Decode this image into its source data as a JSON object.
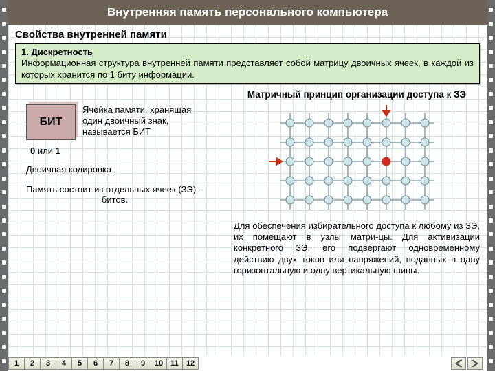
{
  "header": {
    "title": "Внутренняя память персонального компьютера"
  },
  "subhead": "Свойства внутренней памяти",
  "green_box": {
    "title": "1. Дискретность",
    "body": "Информационная структура внутренней памяти представляет собой матрицу двоичных ячеек, в каждой из которых хранится по 1 биту информации."
  },
  "bit": {
    "label": "БИТ",
    "desc": "Ячейка памяти, хранящая один двоичный знак, называется БИТ",
    "zero_one_prefix": "0",
    "zero_one_mid": " или ",
    "zero_one_suffix": "1",
    "binary": "Двоичная кодировка",
    "note": "Память состоит из отдельных ячеек (ЗЭ) – битов."
  },
  "matrix": {
    "title": "Матричный принцип организации доступа к ЗЭ",
    "cols": 8,
    "rows": 5,
    "cell": 28,
    "node_radius": 6,
    "colors": {
      "line": "#8aa0a8",
      "node_fill": "#cfe4e8",
      "node_stroke": "#6a8a92",
      "highlight": "#d02a1e",
      "arrow": "#c8301a"
    },
    "highlight_col": 5,
    "highlight_row": 2,
    "desc": "Для обеспечения избирательного доступа к любому из ЗЭ, их помещают в узлы матри-цы. Для активизации конкретного ЗЭ, его подвергают одновременному действию двух токов или напряжений, поданных в одну горизонтальную и одну вертикальную шины."
  },
  "nav": {
    "pages": [
      "1",
      "2",
      "3",
      "4",
      "5",
      "6",
      "7",
      "8",
      "9",
      "10",
      "11",
      "12"
    ]
  },
  "style": {
    "header_bg": "#6b6255",
    "green_bg": "#d4ecc8",
    "bit_bg": "#c9a9a9"
  }
}
